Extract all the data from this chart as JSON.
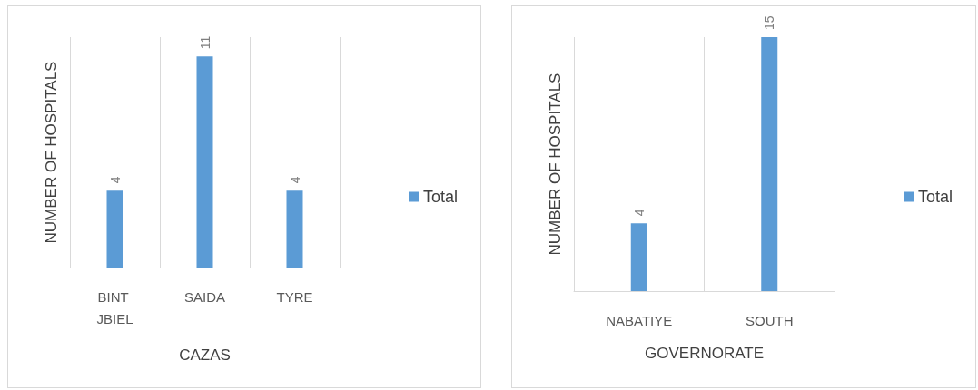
{
  "chart_data": [
    {
      "type": "bar",
      "xlabel": "CAZAS",
      "ylabel": "NUMBER OF HOSPITALS",
      "categories": [
        "BINT JBIEL",
        "SAIDA",
        "TYRE"
      ],
      "series": [
        {
          "name": "Total",
          "color": "#5b9bd5",
          "values": [
            4,
            11,
            4
          ]
        }
      ],
      "data_labels": true,
      "legend": "right",
      "grid": "x",
      "tick_labels": "x"
    },
    {
      "type": "bar",
      "xlabel": "GOVERNORATE",
      "ylabel": "NUMBER OF HOSPITALS",
      "categories": [
        "NABATIYE",
        "SOUTH"
      ],
      "series": [
        {
          "name": "Total",
          "color": "#5b9bd5",
          "values": [
            4,
            15
          ]
        }
      ],
      "data_labels": true,
      "legend": "right",
      "grid": "x",
      "tick_labels": "x"
    }
  ]
}
